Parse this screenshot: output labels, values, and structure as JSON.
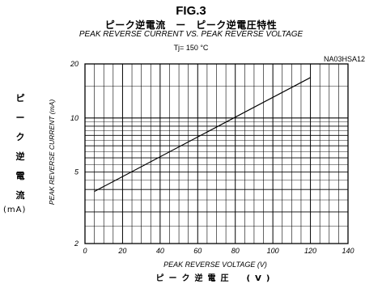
{
  "figure": {
    "label": "FIG.3",
    "title_jp": "ピーク逆電流　ー　ピーク逆電圧特性",
    "title_en": "PEAK REVERSE CURRENT VS. PEAK REVERSE VOLTAGE",
    "condition": "Tj= 150 °C",
    "code": "NA03HSA12",
    "y_label_jp_chars": [
      "ピ",
      "ー",
      "ク",
      "逆",
      "電",
      "流"
    ],
    "y_label_unit": "(mA)",
    "x_label_jp": "ピーク逆電圧　(V)"
  },
  "chart_data": {
    "type": "line",
    "xlabel": "PEAK REVERSE VOLTAGE (V)",
    "ylabel": "PEAK REVERSE CURRENT (mA)",
    "xlim": [
      0,
      140
    ],
    "ylim": [
      2,
      20
    ],
    "yscale": "log",
    "grid": true,
    "x_ticks": [
      0,
      20,
      40,
      60,
      80,
      100,
      120,
      140
    ],
    "y_tick_labels": [
      2,
      5,
      10,
      20
    ],
    "series": [
      {
        "x": [
          5,
          120
        ],
        "y": [
          3.9,
          16.8
        ]
      }
    ],
    "colors": {
      "line": "#000000",
      "grid": "#000000"
    }
  }
}
